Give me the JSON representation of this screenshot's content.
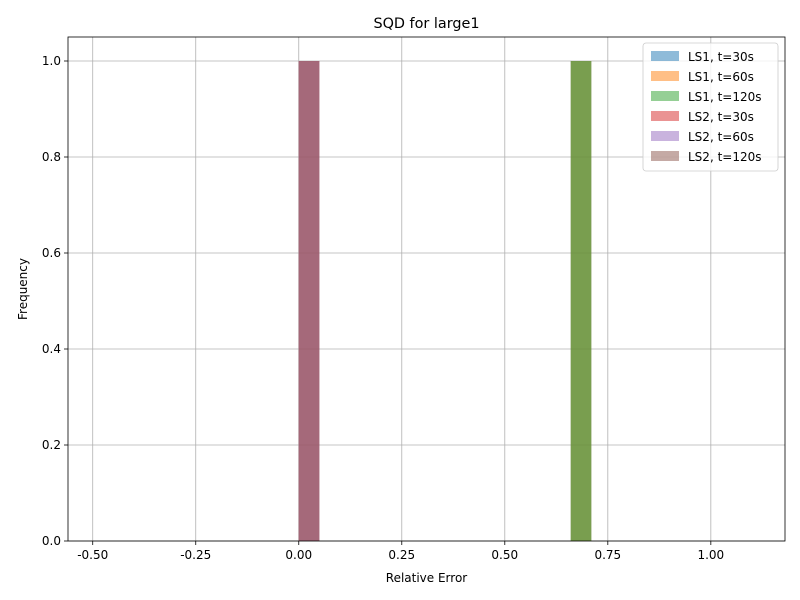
{
  "chart_data": {
    "type": "bar",
    "title": "SQD for large1",
    "xlabel": "Relative Error",
    "ylabel": "Frequency",
    "xlim": [
      -0.56,
      1.18
    ],
    "ylim": [
      0.0,
      1.05
    ],
    "xticks": [
      "-0.50",
      "-0.25",
      "0.00",
      "0.25",
      "0.50",
      "0.75",
      "1.00"
    ],
    "xtick_values": [
      -0.5,
      -0.25,
      0.0,
      0.25,
      0.5,
      0.75,
      1.0
    ],
    "yticks": [
      "0.0",
      "0.2",
      "0.4",
      "0.6",
      "0.8",
      "1.0"
    ],
    "ytick_values": [
      0.0,
      0.2,
      0.4,
      0.6,
      0.8,
      1.0
    ],
    "grid": true,
    "legend_position": "top-right",
    "bar_alpha": 0.5,
    "series": [
      {
        "name": "LS1, t=30s",
        "color": "#1f77b4",
        "bins": [
          {
            "x0": 0.66,
            "x1": 0.71,
            "value": 1.0
          }
        ]
      },
      {
        "name": "LS1, t=60s",
        "color": "#ff7f0e",
        "bins": [
          {
            "x0": 0.66,
            "x1": 0.71,
            "value": 1.0
          }
        ]
      },
      {
        "name": "LS1, t=120s",
        "color": "#2ca02c",
        "bins": [
          {
            "x0": 0.66,
            "x1": 0.71,
            "value": 1.0
          }
        ]
      },
      {
        "name": "LS2, t=30s",
        "color": "#d62728",
        "bins": [
          {
            "x0": 0.0,
            "x1": 0.05,
            "value": 1.0
          }
        ]
      },
      {
        "name": "LS2, t=60s",
        "color": "#9467bd",
        "bins": [
          {
            "x0": 0.0,
            "x1": 0.05,
            "value": 1.0
          }
        ]
      },
      {
        "name": "LS2, t=120s",
        "color": "#8c564b",
        "bins": [
          {
            "x0": 0.0,
            "x1": 0.05,
            "value": 1.0
          }
        ]
      }
    ]
  }
}
